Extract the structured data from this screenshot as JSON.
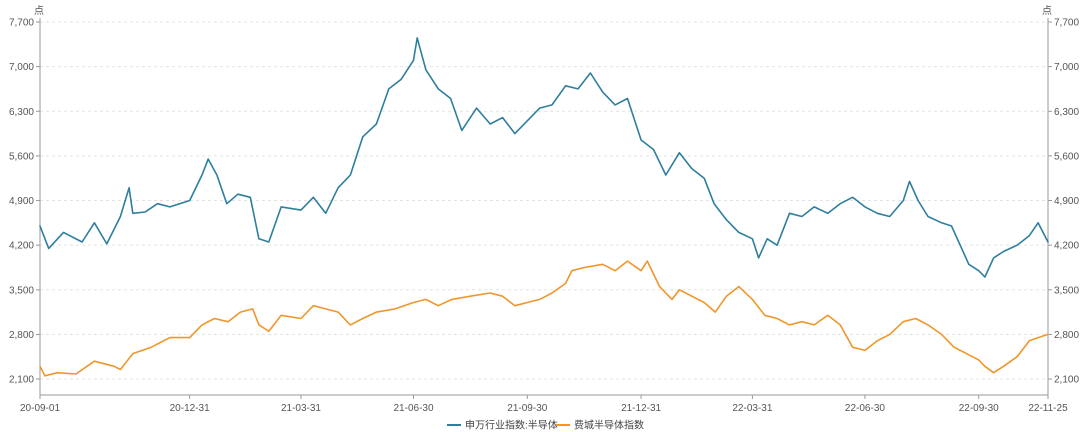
{
  "chart_data": {
    "type": "line",
    "y_unit_left": "点",
    "y_unit_right": "点",
    "ylim": [
      1850,
      7700
    ],
    "y_ticks": [
      2100,
      2800,
      3500,
      4200,
      4900,
      5600,
      6300,
      7000,
      7700
    ],
    "y_tick_labels": [
      "2,100",
      "2,800",
      "3,500",
      "4,200",
      "4,900",
      "5,600",
      "6,300",
      "7,000",
      "7,700"
    ],
    "x_ticks": [
      "20-09-01",
      "20-12-31",
      "21-03-31",
      "21-06-30",
      "21-09-30",
      "21-12-31",
      "22-03-31",
      "22-06-30",
      "22-09-30",
      "22-11-25"
    ],
    "grid": true,
    "legend_position": "bottom",
    "series": [
      {
        "name": "申万行业指数:半导体",
        "color": "#2E7E9E",
        "points": [
          [
            "20-09-01",
            4500
          ],
          [
            "20-09-08",
            4150
          ],
          [
            "20-09-20",
            4400
          ],
          [
            "20-10-05",
            4250
          ],
          [
            "20-10-15",
            4550
          ],
          [
            "20-10-25",
            4220
          ],
          [
            "20-11-05",
            4650
          ],
          [
            "20-11-12",
            5100
          ],
          [
            "20-11-15",
            4700
          ],
          [
            "20-11-25",
            4720
          ],
          [
            "20-12-05",
            4850
          ],
          [
            "20-12-15",
            4800
          ],
          [
            "20-12-31",
            4900
          ],
          [
            "21-01-10",
            5300
          ],
          [
            "21-01-15",
            5550
          ],
          [
            "21-01-22",
            5300
          ],
          [
            "21-01-30",
            4850
          ],
          [
            "21-02-08",
            5000
          ],
          [
            "21-02-18",
            4950
          ],
          [
            "21-02-25",
            4300
          ],
          [
            "21-03-05",
            4250
          ],
          [
            "21-03-15",
            4800
          ],
          [
            "21-03-31",
            4750
          ],
          [
            "21-04-10",
            4950
          ],
          [
            "21-04-20",
            4700
          ],
          [
            "21-04-30",
            5100
          ],
          [
            "21-05-10",
            5300
          ],
          [
            "21-05-20",
            5900
          ],
          [
            "21-05-31",
            6100
          ],
          [
            "21-06-10",
            6650
          ],
          [
            "21-06-20",
            6800
          ],
          [
            "21-06-30",
            7100
          ],
          [
            "21-07-03",
            7450
          ],
          [
            "21-07-10",
            6950
          ],
          [
            "21-07-20",
            6650
          ],
          [
            "21-07-30",
            6500
          ],
          [
            "21-08-08",
            6000
          ],
          [
            "21-08-20",
            6350
          ],
          [
            "21-08-31",
            6100
          ],
          [
            "21-09-10",
            6200
          ],
          [
            "21-09-20",
            5950
          ],
          [
            "21-09-30",
            6150
          ],
          [
            "21-10-10",
            6350
          ],
          [
            "21-10-20",
            6400
          ],
          [
            "21-10-31",
            6700
          ],
          [
            "21-11-10",
            6650
          ],
          [
            "21-11-20",
            6900
          ],
          [
            "21-11-30",
            6600
          ],
          [
            "21-12-10",
            6400
          ],
          [
            "21-12-20",
            6500
          ],
          [
            "21-12-31",
            5850
          ],
          [
            "22-01-10",
            5700
          ],
          [
            "22-01-20",
            5300
          ],
          [
            "22-01-31",
            5650
          ],
          [
            "22-02-10",
            5400
          ],
          [
            "22-02-20",
            5250
          ],
          [
            "22-02-28",
            4850
          ],
          [
            "22-03-10",
            4600
          ],
          [
            "22-03-20",
            4400
          ],
          [
            "22-03-31",
            4300
          ],
          [
            "22-04-05",
            4000
          ],
          [
            "22-04-12",
            4300
          ],
          [
            "22-04-20",
            4200
          ],
          [
            "22-04-30",
            4700
          ],
          [
            "22-05-10",
            4650
          ],
          [
            "22-05-20",
            4800
          ],
          [
            "22-05-31",
            4700
          ],
          [
            "22-06-10",
            4850
          ],
          [
            "22-06-20",
            4950
          ],
          [
            "22-06-30",
            4800
          ],
          [
            "22-07-10",
            4700
          ],
          [
            "22-07-20",
            4650
          ],
          [
            "22-07-31",
            4900
          ],
          [
            "22-08-05",
            5200
          ],
          [
            "22-08-12",
            4900
          ],
          [
            "22-08-20",
            4650
          ],
          [
            "22-08-31",
            4550
          ],
          [
            "22-09-08",
            4500
          ],
          [
            "22-09-15",
            4200
          ],
          [
            "22-09-22",
            3900
          ],
          [
            "22-09-30",
            3800
          ],
          [
            "22-10-05",
            3700
          ],
          [
            "22-10-12",
            4000
          ],
          [
            "22-10-20",
            4100
          ],
          [
            "22-10-31",
            4200
          ],
          [
            "22-11-10",
            4350
          ],
          [
            "22-11-17",
            4550
          ],
          [
            "22-11-25",
            4250
          ]
        ]
      },
      {
        "name": "费城半导体指数",
        "color": "#F0962B",
        "points": [
          [
            "20-09-01",
            2300
          ],
          [
            "20-09-05",
            2150
          ],
          [
            "20-09-15",
            2200
          ],
          [
            "20-09-30",
            2180
          ],
          [
            "20-10-15",
            2380
          ],
          [
            "20-10-31",
            2300
          ],
          [
            "20-11-05",
            2250
          ],
          [
            "20-11-15",
            2500
          ],
          [
            "20-11-30",
            2600
          ],
          [
            "20-12-15",
            2750
          ],
          [
            "20-12-31",
            2750
          ],
          [
            "21-01-10",
            2950
          ],
          [
            "21-01-20",
            3050
          ],
          [
            "21-01-31",
            3000
          ],
          [
            "21-02-10",
            3150
          ],
          [
            "21-02-20",
            3200
          ],
          [
            "21-02-25",
            2950
          ],
          [
            "21-03-05",
            2850
          ],
          [
            "21-03-15",
            3100
          ],
          [
            "21-03-31",
            3050
          ],
          [
            "21-04-10",
            3250
          ],
          [
            "21-04-20",
            3200
          ],
          [
            "21-04-30",
            3150
          ],
          [
            "21-05-10",
            2950
          ],
          [
            "21-05-20",
            3050
          ],
          [
            "21-05-31",
            3150
          ],
          [
            "21-06-15",
            3200
          ],
          [
            "21-06-30",
            3300
          ],
          [
            "21-07-10",
            3350
          ],
          [
            "21-07-20",
            3250
          ],
          [
            "21-07-31",
            3350
          ],
          [
            "21-08-15",
            3400
          ],
          [
            "21-08-31",
            3450
          ],
          [
            "21-09-10",
            3400
          ],
          [
            "21-09-20",
            3250
          ],
          [
            "21-09-30",
            3300
          ],
          [
            "21-10-10",
            3350
          ],
          [
            "21-10-20",
            3450
          ],
          [
            "21-10-31",
            3600
          ],
          [
            "21-11-05",
            3800
          ],
          [
            "21-11-15",
            3850
          ],
          [
            "21-11-30",
            3900
          ],
          [
            "21-12-10",
            3800
          ],
          [
            "21-12-20",
            3950
          ],
          [
            "21-12-31",
            3800
          ],
          [
            "22-01-05",
            3950
          ],
          [
            "22-01-15",
            3550
          ],
          [
            "22-01-25",
            3350
          ],
          [
            "22-01-31",
            3500
          ],
          [
            "22-02-10",
            3400
          ],
          [
            "22-02-20",
            3300
          ],
          [
            "22-03-01",
            3150
          ],
          [
            "22-03-10",
            3400
          ],
          [
            "22-03-20",
            3550
          ],
          [
            "22-03-31",
            3350
          ],
          [
            "22-04-10",
            3100
          ],
          [
            "22-04-20",
            3050
          ],
          [
            "22-04-30",
            2950
          ],
          [
            "22-05-10",
            3000
          ],
          [
            "22-05-20",
            2950
          ],
          [
            "22-05-31",
            3100
          ],
          [
            "22-06-10",
            2950
          ],
          [
            "22-06-20",
            2600
          ],
          [
            "22-06-30",
            2550
          ],
          [
            "22-07-10",
            2700
          ],
          [
            "22-07-20",
            2800
          ],
          [
            "22-07-31",
            3000
          ],
          [
            "22-08-10",
            3050
          ],
          [
            "22-08-20",
            2950
          ],
          [
            "22-08-31",
            2800
          ],
          [
            "22-09-10",
            2600
          ],
          [
            "22-09-20",
            2500
          ],
          [
            "22-09-30",
            2400
          ],
          [
            "22-10-05",
            2300
          ],
          [
            "22-10-12",
            2200
          ],
          [
            "22-10-20",
            2300
          ],
          [
            "22-10-31",
            2450
          ],
          [
            "22-11-10",
            2700
          ],
          [
            "22-11-17",
            2750
          ],
          [
            "22-11-25",
            2800
          ]
        ]
      }
    ]
  }
}
